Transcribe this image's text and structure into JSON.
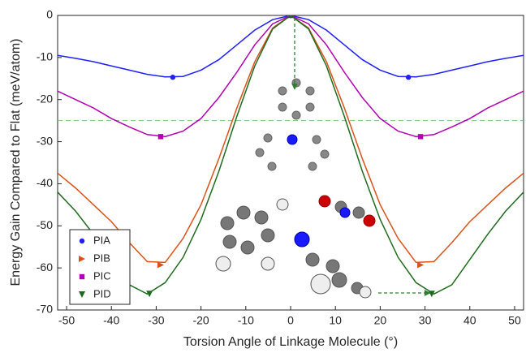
{
  "chart_data": {
    "type": "line",
    "xlabel": "Torsion Angle of Linkage Molecule (°)",
    "ylabel": "Energy Gain Compared to Flat (meV/atom)",
    "xlim": [
      -52,
      52
    ],
    "ylim": [
      -70,
      0
    ],
    "xticks": [
      -50,
      -40,
      -30,
      -20,
      -10,
      0,
      10,
      20,
      30,
      40,
      50
    ],
    "yticks": [
      0,
      -10,
      -20,
      -30,
      -40,
      -50,
      -60,
      -70
    ],
    "reference_line": -25,
    "series": [
      {
        "name": "PIA",
        "color": "#1f1fff",
        "marker": "circle",
        "x": [
          -52,
          -48,
          -44,
          -40,
          -36,
          -32,
          -28,
          -24,
          -20,
          -16,
          -12,
          -8,
          -4,
          0,
          4,
          8,
          12,
          16,
          20,
          24,
          28,
          32,
          36,
          40,
          44,
          48,
          52
        ],
        "values": [
          -9.5,
          -10.2,
          -11,
          -12,
          -13,
          -14,
          -14.6,
          -14.5,
          -13,
          -10.5,
          -7,
          -3.5,
          -1,
          0,
          -1,
          -3.5,
          -7,
          -10.5,
          -13,
          -14.5,
          -14.6,
          -14,
          -13,
          -12,
          -11,
          -10.2,
          -9.5
        ],
        "marker_x": [
          -26.3,
          0,
          26.3
        ],
        "marker_values": [
          -14.7,
          0,
          -14.7
        ]
      },
      {
        "name": "PIB",
        "color": "#d95319",
        "marker": "triangle-right",
        "x": [
          -52,
          -48,
          -44,
          -40,
          -36,
          -32,
          -28,
          -24,
          -20,
          -16,
          -12,
          -8,
          -4,
          0,
          4,
          8,
          12,
          16,
          20,
          24,
          28,
          32,
          36,
          40,
          44,
          48,
          52
        ],
        "values": [
          -37.5,
          -41,
          -45,
          -49,
          -54,
          -58.5,
          -58.7,
          -53,
          -45,
          -34,
          -22,
          -11,
          -3,
          0,
          -3,
          -11,
          -22,
          -34,
          -45,
          -53,
          -58.7,
          -58.5,
          -54,
          -49,
          -45,
          -41,
          -37.5
        ],
        "marker_x": [
          -29,
          0,
          29
        ],
        "marker_values": [
          -59.3,
          0,
          -59.3
        ]
      },
      {
        "name": "PIC",
        "color": "#b000b0",
        "marker": "square",
        "x": [
          -52,
          -48,
          -44,
          -40,
          -36,
          -32,
          -28,
          -24,
          -20,
          -16,
          -12,
          -8,
          -4,
          0,
          4,
          8,
          12,
          16,
          20,
          24,
          28,
          32,
          36,
          40,
          44,
          48,
          52
        ],
        "values": [
          -18,
          -20,
          -22,
          -24.5,
          -26.5,
          -28.3,
          -28.8,
          -27.5,
          -24.5,
          -19.5,
          -13.5,
          -7,
          -2,
          0,
          -2,
          -7,
          -13.5,
          -19.5,
          -24.5,
          -27.5,
          -28.8,
          -28.3,
          -26.5,
          -24.5,
          -22,
          -20,
          -18
        ],
        "marker_x": [
          -29,
          0,
          29
        ],
        "marker_values": [
          -28.8,
          0,
          -28.8
        ]
      },
      {
        "name": "PID",
        "color": "#1e6b1e",
        "marker": "triangle-down",
        "x": [
          -52,
          -48,
          -44,
          -40,
          -36,
          -32,
          -28,
          -24,
          -20,
          -16,
          -12,
          -8,
          -4,
          0,
          4,
          8,
          12,
          16,
          20,
          24,
          28,
          32,
          36,
          40,
          44,
          48,
          52
        ],
        "values": [
          -42,
          -46.5,
          -52,
          -58,
          -64,
          -66.2,
          -63.5,
          -57.5,
          -48.5,
          -37,
          -24,
          -12,
          -3.2,
          0,
          -3.2,
          -12,
          -24,
          -37,
          -48.5,
          -57.5,
          -63.5,
          -66.2,
          -64,
          -58,
          -52,
          -46.5,
          -42
        ],
        "marker_x": [
          -31.5,
          0,
          31.5
        ],
        "marker_values": [
          -66.2,
          0,
          -66.2
        ]
      }
    ]
  }
}
